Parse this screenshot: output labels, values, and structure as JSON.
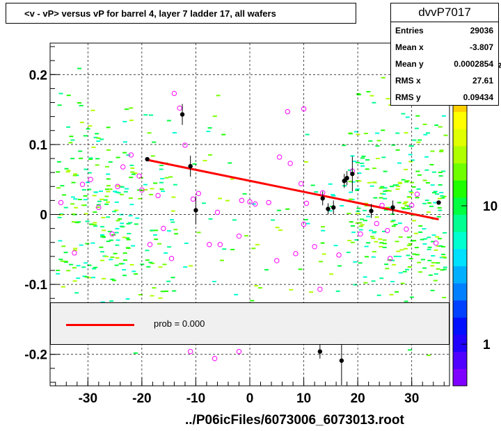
{
  "title": "<v - vP>       versus   vP for barrel 4, layer 7 ladder 17, all wafers",
  "stats": {
    "name": "dvvP7017",
    "rows": [
      {
        "label": "Entries",
        "value": "29036"
      },
      {
        "label": "Mean x",
        "value": "-3.807"
      },
      {
        "label": "Mean y",
        "value": "0.0002854"
      },
      {
        "label": "RMS x",
        "value": "27.61"
      },
      {
        "label": "RMS y",
        "value": "0.09434"
      }
    ]
  },
  "legend": {
    "label": "prob = 0.000",
    "color": "#ff0000"
  },
  "file_label": "../P06icFiles/6073006_6073013.root",
  "chart_data": {
    "type": "scatter",
    "title": "<v - vP>       versus   vP for barrel 4, layer 7 ladder 17, all wafers",
    "xlabel": "",
    "ylabel": "",
    "xlim": [
      -37,
      37
    ],
    "ylim": [
      -0.245,
      0.245
    ],
    "xticks": [
      -30,
      -20,
      -10,
      0,
      10,
      20,
      30
    ],
    "xtick_labels": [
      "-30",
      "-20",
      "-10",
      "0",
      "10",
      "20",
      "30"
    ],
    "yticks": [
      -0.2,
      -0.1,
      0,
      0.1,
      0.2
    ],
    "ytick_labels": [
      "-0.2",
      "-0.1",
      "0",
      "0.1",
      "0.2"
    ],
    "grid": true,
    "z_axis": {
      "scale": "log",
      "tick_labels": [
        "1",
        "10",
        "10²"
      ],
      "ticks": [
        1,
        10,
        100
      ],
      "zlim": [
        0.5,
        150
      ],
      "colors": [
        "#8000ff",
        "#5000ff",
        "#2000ff",
        "#0010ff",
        "#0040ff",
        "#0080ff",
        "#00b0ff",
        "#00e0ff",
        "#00ffd0",
        "#00ff90",
        "#00ff40",
        "#20ff00",
        "#70ff00",
        "#b0ff00",
        "#e0ff00",
        "#ffff00",
        "#ffd000",
        "#ffa000",
        "#ff6000",
        "#ff2000"
      ]
    },
    "fit_line": {
      "color": "#ff0000",
      "x": [
        -19,
        35
      ],
      "y": [
        0.078,
        -0.007
      ]
    },
    "black_points": [
      {
        "x": -12.5,
        "y": 0.143,
        "err": 0.015
      },
      {
        "x": -19,
        "y": 0.079,
        "err": 0
      },
      {
        "x": -11,
        "y": 0.069,
        "err": 0.015
      },
      {
        "x": -10,
        "y": 0.006,
        "err": 0.02
      },
      {
        "x": 13.5,
        "y": 0.023,
        "err": 0.01
      },
      {
        "x": 14.5,
        "y": 0.008,
        "err": 0.008
      },
      {
        "x": 15.5,
        "y": 0.01,
        "err": 0.01
      },
      {
        "x": 17.5,
        "y": 0.048,
        "err": 0.01
      },
      {
        "x": 18,
        "y": 0.052,
        "err": 0.01
      },
      {
        "x": 19,
        "y": 0.058,
        "err": 0.025
      },
      {
        "x": 22.5,
        "y": 0.005,
        "err": 0.01
      },
      {
        "x": 26.5,
        "y": 0.01,
        "err": 0.01
      },
      {
        "x": 35,
        "y": 0.017,
        "err": 0
      },
      {
        "x": 13,
        "y": -0.196,
        "err": 0.01
      },
      {
        "x": 17,
        "y": -0.209,
        "err": 0.035
      }
    ],
    "pink_points": [
      {
        "x": -14,
        "y": 0.173
      },
      {
        "x": -13,
        "y": 0.152
      },
      {
        "x": -12,
        "y": 0.099
      },
      {
        "x": -10.5,
        "y": 0.022
      },
      {
        "x": -9.5,
        "y": 0.03
      },
      {
        "x": -6,
        "y": 0.003
      },
      {
        "x": -7.5,
        "y": -0.043
      },
      {
        "x": -5.5,
        "y": -0.043
      },
      {
        "x": -2,
        "y": -0.031
      },
      {
        "x": -1.5,
        "y": 0.02
      },
      {
        "x": 0,
        "y": 0.018
      },
      {
        "x": 1,
        "y": 0.015
      },
      {
        "x": 3.5,
        "y": 0.017
      },
      {
        "x": 5,
        "y": -0.066
      },
      {
        "x": 5.5,
        "y": 0.082
      },
      {
        "x": 7,
        "y": 0.147
      },
      {
        "x": 7.5,
        "y": 0.073
      },
      {
        "x": 8.5,
        "y": -0.056
      },
      {
        "x": 9.5,
        "y": 0.044
      },
      {
        "x": 10,
        "y": 0.151
      },
      {
        "x": 10.5,
        "y": 0.016
      },
      {
        "x": 10,
        "y": -0.014
      },
      {
        "x": 12,
        "y": -0.046
      },
      {
        "x": 13.5,
        "y": 0.031
      },
      {
        "x": 13,
        "y": -0.107
      },
      {
        "x": 16.5,
        "y": -0.058
      },
      {
        "x": 19,
        "y": 0.062
      },
      {
        "x": 20.5,
        "y": -0.028
      },
      {
        "x": 23.5,
        "y": -0.013
      },
      {
        "x": 24.5,
        "y": 0.013
      },
      {
        "x": 25.5,
        "y": -0.023
      },
      {
        "x": 26,
        "y": -0.063
      },
      {
        "x": 29,
        "y": -0.021
      },
      {
        "x": 30,
        "y": 0.013
      },
      {
        "x": 31,
        "y": 0.029
      },
      {
        "x": 34.5,
        "y": -0.041
      },
      {
        "x": -25.5,
        "y": -0.028
      },
      {
        "x": -24.5,
        "y": 0.04
      },
      {
        "x": -23.5,
        "y": 0.068
      },
      {
        "x": -22,
        "y": 0.085
      },
      {
        "x": -20.5,
        "y": 0.055
      },
      {
        "x": -20,
        "y": 0.035
      },
      {
        "x": -18.5,
        "y": -0.043
      },
      {
        "x": -17,
        "y": 0.027
      },
      {
        "x": -16,
        "y": -0.02
      },
      {
        "x": -14.5,
        "y": -0.063
      },
      {
        "x": -29.5,
        "y": 0.05
      },
      {
        "x": -31,
        "y": 0.043
      },
      {
        "x": -32.5,
        "y": -0.055
      },
      {
        "x": -28,
        "y": 0.01
      },
      {
        "x": -35,
        "y": 0.017
      },
      {
        "x": -11,
        "y": -0.196
      },
      {
        "x": -6.5,
        "y": -0.206
      },
      {
        "x": -2,
        "y": -0.196
      }
    ]
  }
}
